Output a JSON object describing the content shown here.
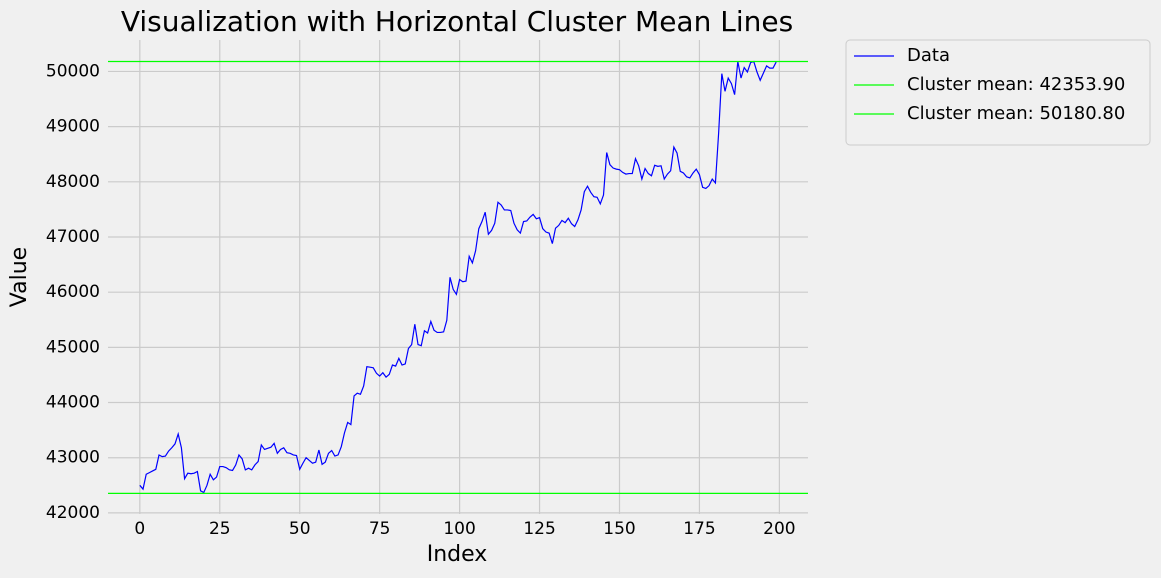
{
  "chart_data": {
    "type": "line",
    "title": "Visualization with Horizontal Cluster Mean Lines",
    "xlabel": "Index",
    "ylabel": "Value",
    "x": [
      0,
      1,
      2,
      3,
      4,
      5,
      6,
      7,
      8,
      9,
      10,
      11,
      12,
      13,
      14,
      15,
      16,
      17,
      18,
      19,
      20,
      21,
      22,
      23,
      24,
      25,
      26,
      27,
      28,
      29,
      30,
      31,
      32,
      33,
      34,
      35,
      36,
      37,
      38,
      39,
      40,
      41,
      42,
      43,
      44,
      45,
      46,
      47,
      48,
      49,
      50,
      51,
      52,
      53,
      54,
      55,
      56,
      57,
      58,
      59,
      60,
      61,
      62,
      63,
      64,
      65,
      66,
      67,
      68,
      69,
      70,
      71,
      72,
      73,
      74,
      75,
      76,
      77,
      78,
      79,
      80,
      81,
      82,
      83,
      84,
      85,
      86,
      87,
      88,
      89,
      90,
      91,
      92,
      93,
      94,
      95,
      96,
      97,
      98,
      99,
      100,
      101,
      102,
      103,
      104,
      105,
      106,
      107,
      108,
      109,
      110,
      111,
      112,
      113,
      114,
      115,
      116,
      117,
      118,
      119,
      120,
      121,
      122,
      123,
      124,
      125,
      126,
      127,
      128,
      129,
      130,
      131,
      132,
      133,
      134,
      135,
      136,
      137,
      138,
      139,
      140,
      141,
      142,
      143,
      144,
      145,
      146,
      147,
      148,
      149,
      150,
      151,
      152,
      153,
      154,
      155,
      156,
      157,
      158,
      159,
      160,
      161,
      162,
      163,
      164,
      165,
      166,
      167,
      168,
      169,
      170,
      171,
      172,
      173,
      174,
      175,
      176,
      177,
      178,
      179,
      180,
      181,
      182,
      183,
      184,
      185,
      186,
      187,
      188,
      189,
      190,
      191,
      192,
      193,
      194,
      195,
      196,
      197,
      198,
      199
    ],
    "series": [
      {
        "name": "Data",
        "color": "#0000ff",
        "values": [
          42500,
          42430,
          42700,
          42730,
          42760,
          42790,
          43050,
          43020,
          43030,
          43120,
          43180,
          43250,
          43430,
          43180,
          42620,
          42720,
          42710,
          42720,
          42750,
          42400,
          42370,
          42500,
          42700,
          42600,
          42650,
          42840,
          42840,
          42820,
          42780,
          42770,
          42870,
          43050,
          42980,
          42780,
          42810,
          42780,
          42870,
          42930,
          43230,
          43150,
          43170,
          43190,
          43260,
          43080,
          43150,
          43180,
          43090,
          43080,
          43050,
          43040,
          42790,
          42900,
          43000,
          42950,
          42900,
          42920,
          43140,
          42880,
          42920,
          43080,
          43130,
          43030,
          43050,
          43200,
          43450,
          43640,
          43600,
          44120,
          44170,
          44150,
          44300,
          44650,
          44640,
          44630,
          44530,
          44480,
          44540,
          44460,
          44510,
          44680,
          44660,
          44800,
          44680,
          44700,
          44980,
          45050,
          45420,
          45050,
          45030,
          45300,
          45260,
          45470,
          45310,
          45270,
          45270,
          45280,
          45490,
          46270,
          46050,
          45960,
          46230,
          46190,
          46200,
          46650,
          46530,
          46750,
          47150,
          47280,
          47450,
          47050,
          47120,
          47250,
          47630,
          47580,
          47490,
          47490,
          47480,
          47250,
          47130,
          47070,
          47280,
          47290,
          47360,
          47410,
          47330,
          47350,
          47150,
          47090,
          47070,
          46880,
          47160,
          47210,
          47300,
          47260,
          47340,
          47240,
          47190,
          47310,
          47490,
          47820,
          47920,
          47810,
          47730,
          47720,
          47600,
          47760,
          48530,
          48310,
          48250,
          48230,
          48220,
          48170,
          48140,
          48150,
          48150,
          48420,
          48290,
          48050,
          48240,
          48150,
          48110,
          48300,
          48280,
          48290,
          48050,
          48140,
          48200,
          48630,
          48520,
          48190,
          48160,
          48090,
          48070,
          48160,
          48230,
          48130,
          47900,
          47880,
          47930,
          48050,
          47980,
          48880,
          49960,
          49640,
          49880,
          49780,
          49580,
          50180,
          49880,
          50070,
          49990,
          50160,
          50180,
          49990,
          49840,
          49970,
          50100,
          50060,
          50060,
          50170
        ]
      }
    ],
    "hlines": [
      {
        "name": "Cluster mean: 42353.90",
        "value": 42353.9,
        "color": "#00ff00"
      },
      {
        "name": "Cluster mean: 50180.80",
        "value": 50180.8,
        "color": "#00ff00"
      }
    ],
    "xlim": [
      -9.95,
      208.95
    ],
    "ylim": [
      41980,
      50570
    ],
    "xticks": [
      0,
      25,
      50,
      75,
      100,
      125,
      150,
      175,
      200
    ],
    "yticks": [
      42000,
      43000,
      44000,
      45000,
      46000,
      47000,
      48000,
      49000,
      50000
    ],
    "grid": true,
    "legend": "outside upper right"
  }
}
